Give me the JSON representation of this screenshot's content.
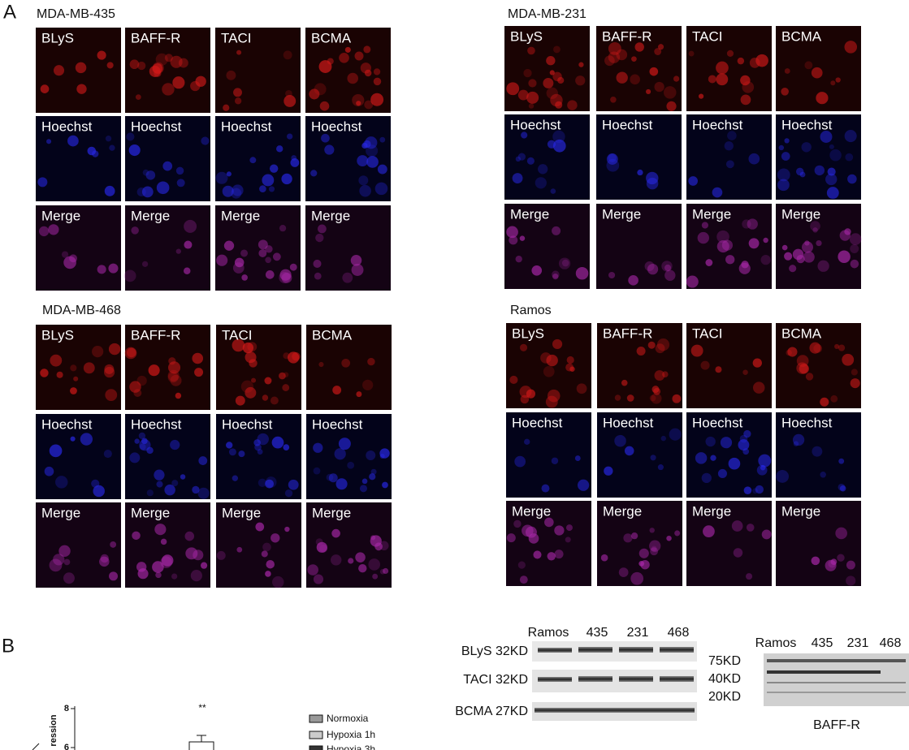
{
  "panel_a": {
    "label": "A",
    "groups": [
      {
        "title": "MDA-MB-435",
        "rows": [
          [
            "BLyS",
            "BAFF-R",
            "TACI",
            "BCMA"
          ],
          [
            "Hoechst",
            "Hoechst",
            "Hoechst",
            "Hoechst"
          ],
          [
            "Merge",
            "Merge",
            "Merge",
            "Merge"
          ]
        ]
      },
      {
        "title": "MDA-MB-231",
        "rows": [
          [
            "BLyS",
            "BAFF-R",
            "TACI",
            "BCMA"
          ],
          [
            "Hoechst",
            "Hoechst",
            "Hoechst",
            "Hoechst"
          ],
          [
            "Merge",
            "Merge",
            "Merge",
            "Merge"
          ]
        ]
      },
      {
        "title": "MDA-MB-468",
        "rows": [
          [
            "BLyS",
            "BAFF-R",
            "TACI",
            "BCMA"
          ],
          [
            "Hoechst",
            "Hoechst",
            "Hoechst",
            "Hoechst"
          ],
          [
            "Merge",
            "Merge",
            "Merge",
            "Merge"
          ]
        ]
      },
      {
        "title": "Ramos",
        "rows": [
          [
            "BLyS",
            "BAFF-R",
            "TACI",
            "BCMA"
          ],
          [
            "Hoechst",
            "Hoechst",
            "Hoechst",
            "Hoechst"
          ],
          [
            "Merge",
            "Merge",
            "Merge",
            "Merge"
          ]
        ]
      }
    ]
  },
  "panel_b": {
    "label": "B",
    "chart": {
      "y_axis_label": "ression",
      "yticks": [
        "8",
        "6"
      ],
      "significance": "**",
      "legend": [
        "Normoxia",
        "Hypoxia 1h",
        "Hypoxia 3h"
      ]
    },
    "blot_1": {
      "lanes": [
        "Ramos",
        "435",
        "231",
        "468"
      ],
      "rows": [
        "BLyS 32KD",
        "TACI 32KD",
        "BCMA 27KD"
      ]
    },
    "blot_2": {
      "lanes": [
        "Ramos",
        "435",
        "231",
        "468"
      ],
      "markers": [
        "75KD",
        "40KD",
        "20KD"
      ],
      "caption": "BAFF-R"
    }
  }
}
